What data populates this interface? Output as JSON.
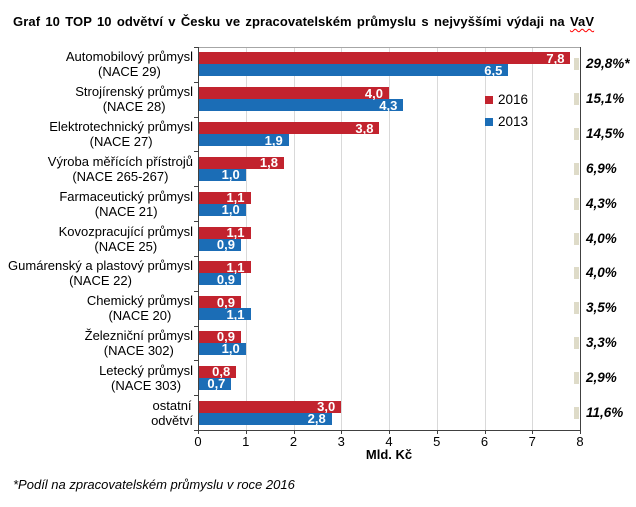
{
  "title": {
    "text_before": "Graf 10 TOP 10 odvětví v Česku ve zpracovatelském průmyslu s nejvyššími výdaji na ",
    "underlined_word": "VaV"
  },
  "footnote": "*Podíl na zpracovatelském průmyslu v roce 2016",
  "colors": {
    "series_2016": "#C2232E",
    "series_2013": "#1B6DB6",
    "gridline": "#D9D9D9",
    "axis": "#404040",
    "plot_border_top": "#A6A6A6",
    "share_marker": "#DEDBC8",
    "bar_value_text": "#FFFFFF",
    "spellcheck_underline": "#FF0000"
  },
  "chart_data": {
    "type": "bar",
    "orientation": "horizontal",
    "title": "Graf 10 TOP 10 odvětví v Česku ve zpracovatelském průmyslu s nejvyššími výdaji na VaV",
    "xlabel": "Mld. Kč",
    "xlim": [
      0,
      8
    ],
    "xticks": [
      0,
      1,
      2,
      3,
      4,
      5,
      6,
      7,
      8
    ],
    "grid": true,
    "legend_position": "inside top-right",
    "value_label_decimal": "comma",
    "categories": [
      {
        "label_lines": [
          "Automobilový průmysl",
          "(NACE 29)"
        ],
        "share_2016": "29,8%*"
      },
      {
        "label_lines": [
          "Strojírenský průmysl",
          "(NACE 28)"
        ],
        "share_2016": "15,1%"
      },
      {
        "label_lines": [
          "Elektrotechnický průmysl",
          "(NACE 27)"
        ],
        "share_2016": "14,5%"
      },
      {
        "label_lines": [
          "Výroba měřících přístrojů",
          "(NACE 265-267)"
        ],
        "share_2016": "6,9%"
      },
      {
        "label_lines": [
          "Farmaceutický průmysl",
          "(NACE 21)"
        ],
        "share_2016": "4,3%"
      },
      {
        "label_lines": [
          "Kovozpracující průmysl",
          "(NACE 25)"
        ],
        "share_2016": "4,0%"
      },
      {
        "label_lines": [
          "Gumárenský a plastový průmysl",
          "(NACE 22)"
        ],
        "share_2016": "4,0%"
      },
      {
        "label_lines": [
          "Chemický průmysl",
          "(NACE 20)"
        ],
        "share_2016": "3,5%"
      },
      {
        "label_lines": [
          "Železniční průmysl",
          "(NACE 302)"
        ],
        "share_2016": "3,3%"
      },
      {
        "label_lines": [
          "Letecký průmysl",
          "(NACE 303)"
        ],
        "share_2016": "2,9%"
      },
      {
        "label_lines": [
          "ostatní",
          "odvětví"
        ],
        "share_2016": "11,6%"
      }
    ],
    "series": [
      {
        "name": "2016",
        "color": "#C2232E",
        "values": [
          7.8,
          4.0,
          3.8,
          1.8,
          1.1,
          1.1,
          1.1,
          0.9,
          0.9,
          0.8,
          3.0
        ]
      },
      {
        "name": "2013",
        "color": "#1B6DB6",
        "values": [
          6.5,
          4.3,
          1.9,
          1.0,
          1.0,
          0.9,
          0.9,
          1.1,
          1.0,
          0.7,
          2.8
        ]
      }
    ]
  }
}
